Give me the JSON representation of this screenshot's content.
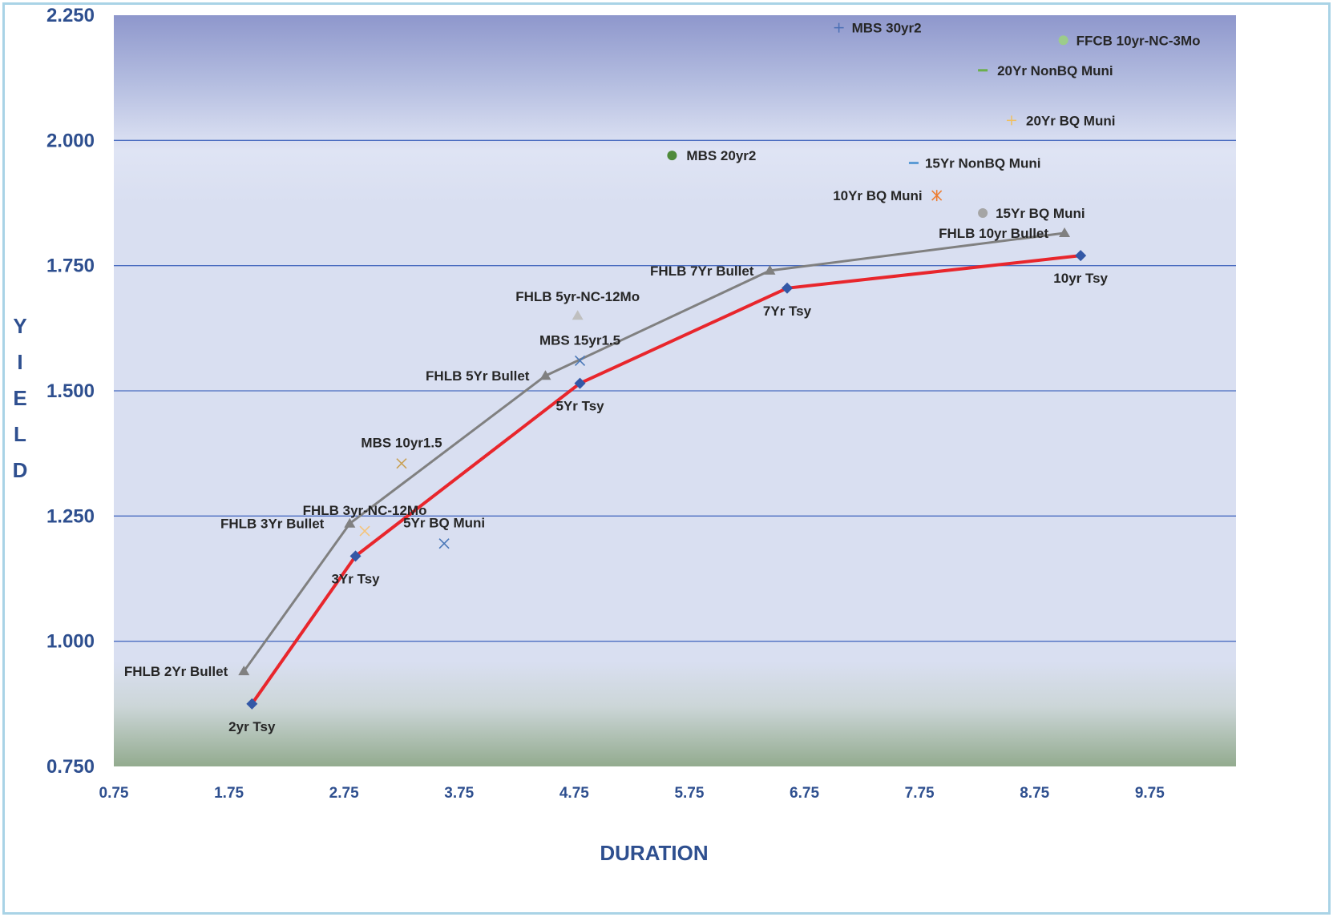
{
  "chart_data": {
    "type": "scatter",
    "xlabel": "DURATION",
    "ylabel": "YIELD",
    "xlim": [
      0.75,
      10.5
    ],
    "ylim": [
      0.75,
      2.25
    ],
    "x_ticks": [
      "0.75",
      "1.75",
      "2.75",
      "3.75",
      "4.75",
      "5.75",
      "6.75",
      "7.75",
      "8.75",
      "9.75"
    ],
    "y_ticks": [
      "0.750",
      "1.000",
      "1.250",
      "1.500",
      "1.750",
      "2.000",
      "2.250"
    ],
    "grid": true,
    "legend": "none",
    "lines": [
      {
        "color": "#808080",
        "marker": "triangle",
        "points": [
          {
            "x": 1.88,
            "y": 0.94,
            "label": "FHLB 2Yr Bullet"
          },
          {
            "x": 2.8,
            "y": 1.235,
            "label": "FHLB 3Yr Bullet"
          },
          {
            "x": 4.5,
            "y": 1.53,
            "label": "FHLB 5Yr Bullet"
          },
          {
            "x": 6.45,
            "y": 1.74,
            "label": "FHLB 7Yr Bullet"
          },
          {
            "x": 9.01,
            "y": 1.815,
            "label": "FHLB 10yr Bullet"
          }
        ]
      },
      {
        "color": "#e8262c",
        "marker": "diamond",
        "marker_color": "#3358a6",
        "points": [
          {
            "x": 1.95,
            "y": 0.875,
            "label": "2yr Tsy"
          },
          {
            "x": 2.85,
            "y": 1.17,
            "label": "3Yr Tsy"
          },
          {
            "x": 4.8,
            "y": 1.515,
            "label": "5Yr Tsy"
          },
          {
            "x": 6.6,
            "y": 1.705,
            "label": "7Yr Tsy"
          },
          {
            "x": 9.15,
            "y": 1.77,
            "label": "10yr Tsy"
          }
        ]
      }
    ],
    "points": [
      {
        "x": 7.05,
        "y": 2.225,
        "label": "MBS 30yr2",
        "marker": "plus",
        "color": "#4a6fb5"
      },
      {
        "x": 9.0,
        "y": 2.2,
        "label": "FFCB 10yr-NC-3Mo",
        "marker": "circle",
        "color": "#9ccc8a"
      },
      {
        "x": 8.3,
        "y": 2.14,
        "label": "20Yr NonBQ Muni",
        "marker": "dash",
        "color": "#6aaf4a"
      },
      {
        "x": 8.55,
        "y": 2.04,
        "label": "20Yr BQ Muni",
        "marker": "plus",
        "color": "#f0c060"
      },
      {
        "x": 5.6,
        "y": 1.97,
        "label": "MBS 20yr2",
        "marker": "circle",
        "color": "#4e8a3a"
      },
      {
        "x": 7.7,
        "y": 1.955,
        "label": "15Yr NonBQ Muni",
        "marker": "dash",
        "color": "#5b9bd5"
      },
      {
        "x": 7.9,
        "y": 1.89,
        "label": "10Yr BQ Muni",
        "marker": "asterisk",
        "color": "#ed7d31"
      },
      {
        "x": 8.3,
        "y": 1.855,
        "label": "15Yr BQ Muni",
        "marker": "circle",
        "color": "#a5a5a5"
      },
      {
        "x": 4.78,
        "y": 1.65,
        "label": "FHLB 5yr-NC-12Mo",
        "marker": "triangle",
        "color": "#bfbfbf"
      },
      {
        "x": 4.8,
        "y": 1.56,
        "label": "MBS 15yr1.5",
        "marker": "x",
        "color": "#4a78b8"
      },
      {
        "x": 3.25,
        "y": 1.355,
        "label": "MBS 10yr1.5",
        "marker": "x",
        "color": "#c9a155"
      },
      {
        "x": 2.93,
        "y": 1.22,
        "label": "FHLB 3yr-NC-12Mo",
        "marker": "x",
        "color": "#f5c47a"
      },
      {
        "x": 3.62,
        "y": 1.195,
        "label": "5Yr BQ Muni",
        "marker": "x",
        "color": "#4a78b8"
      }
    ]
  }
}
